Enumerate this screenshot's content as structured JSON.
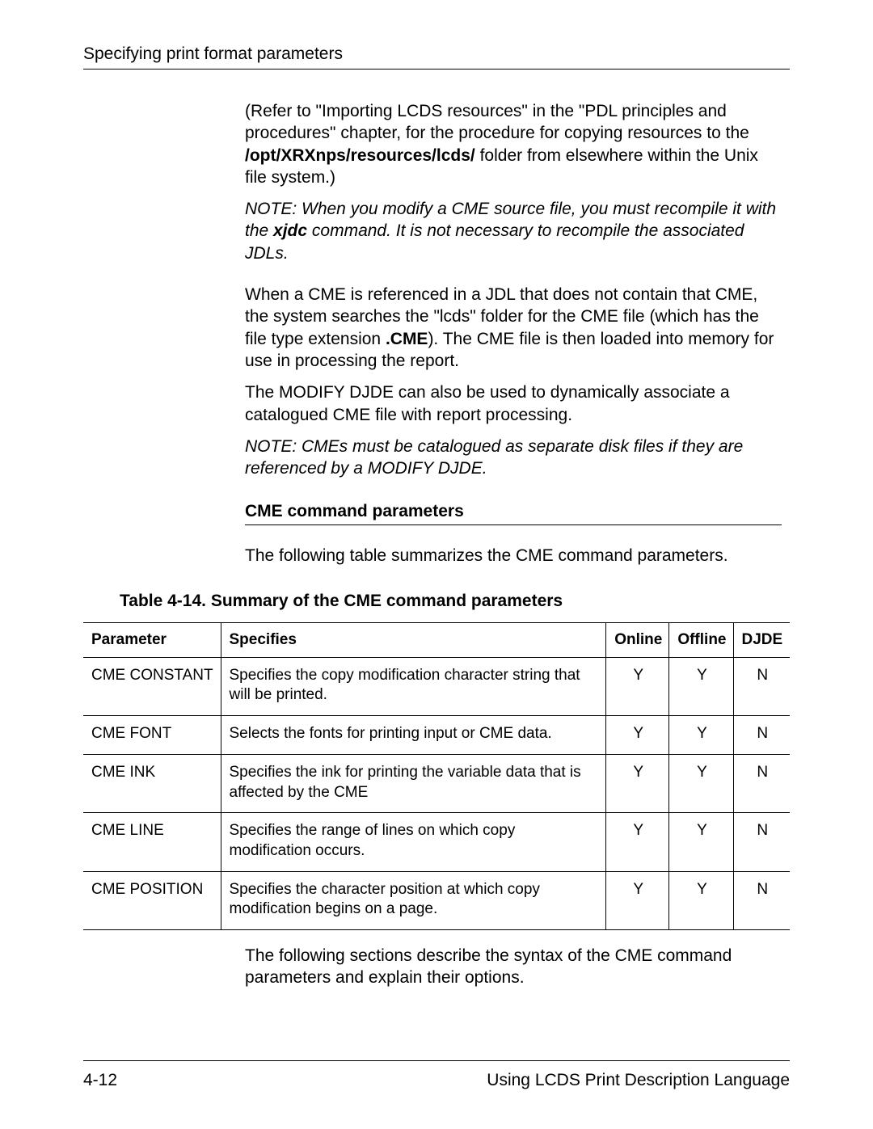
{
  "header": {
    "title": "Specifying print format parameters"
  },
  "body": {
    "para1_pre": "(Refer to \"Importing LCDS resources\" in the \"PDL principles and procedures\" chapter, for the procedure for copying resources to the ",
    "para1_bold": "/opt/XRXnps/resources/lcds/",
    "para1_post": " folder from elsewhere within the Unix file system.)",
    "note1_pre": "NOTE:  When you modify a CME source file, you must recompile it with the ",
    "note1_bold": "xjdc",
    "note1_post": " command. It is not necessary to recompile the associated JDLs.",
    "para2_pre": "When a CME is referenced in a JDL that does not contain that CME, the system searches the \"lcds\" folder for the CME file (which has the file type extension ",
    "para2_bold": ".CME",
    "para2_post": "). The CME file is then loaded into memory for use in processing the report.",
    "para3": "The MODIFY DJDE can also be used to dynamically associate a catalogued CME file with report processing.",
    "note2": "NOTE:  CMEs must be catalogued as separate disk files if they are referenced by a MODIFY DJDE.",
    "section_heading": "CME command parameters",
    "para4": "The following table summarizes the CME command parameters.",
    "table_caption": "Table 4-14. Summary of the CME command parameters",
    "para5": "The following sections describe the syntax of the CME command parameters and explain their options."
  },
  "table": {
    "headers": {
      "parameter": "Parameter",
      "specifies": "Specifies",
      "online": "Online",
      "offline": "Offline",
      "djde": "DJDE"
    },
    "rows": [
      {
        "param": "CME CONSTANT",
        "spec": "Specifies the copy modification character string that will be printed.",
        "online": "Y",
        "offline": "Y",
        "djde": "N"
      },
      {
        "param": "CME FONT",
        "spec": "Selects the fonts for printing input or CME data.",
        "online": "Y",
        "offline": "Y",
        "djde": "N"
      },
      {
        "param": "CME INK",
        "spec": "Specifies the ink for printing the variable data that is affected by the CME",
        "online": "Y",
        "offline": "Y",
        "djde": "N"
      },
      {
        "param": "CME LINE",
        "spec": "Specifies the range of lines on which copy modification occurs.",
        "online": "Y",
        "offline": "Y",
        "djde": "N"
      },
      {
        "param": "CME POSITION",
        "spec": "Specifies the character position at which copy modification begins on a page.",
        "online": "Y",
        "offline": "Y",
        "djde": "N"
      }
    ]
  },
  "footer": {
    "page": "4-12",
    "doc_title": "Using LCDS Print Description Language"
  }
}
